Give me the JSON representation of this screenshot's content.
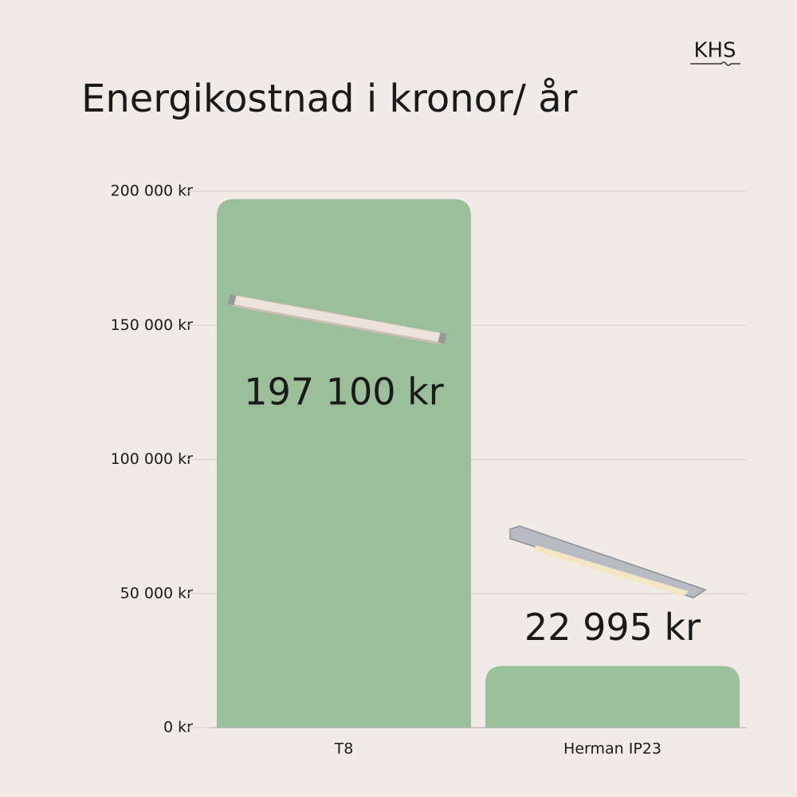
{
  "chart_data": {
    "type": "bar",
    "title": "Energikostnad i kronor/ år",
    "logo": "KHS",
    "categories": [
      "T8",
      "Herman IP23"
    ],
    "values": [
      197100,
      22995
    ],
    "value_labels": [
      "197 100 kr",
      "22 995 kr"
    ],
    "color": "#9bbf98",
    "ylim": [
      0,
      200000
    ],
    "yticks": [
      {
        "value": 0,
        "label": "0 kr"
      },
      {
        "value": 50000,
        "label": "50 000 kr"
      },
      {
        "value": 100000,
        "label": "100 000 kr"
      },
      {
        "value": 150000,
        "label": "150 000 kr"
      },
      {
        "value": 200000,
        "label": "200 000 kr"
      }
    ],
    "grid": true
  }
}
